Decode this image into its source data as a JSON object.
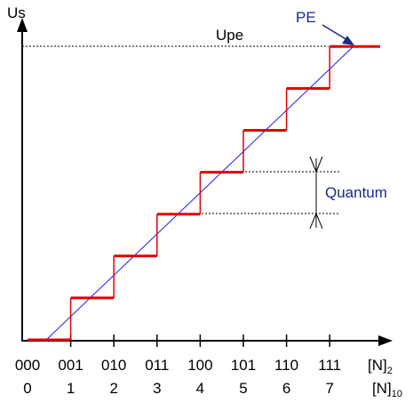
{
  "axis": {
    "y_label": "Us",
    "x_suffix_binary": "[N]",
    "x_suffix_binary_sub": "2",
    "x_suffix_decimal": "[N]",
    "x_suffix_decimal_sub": "10"
  },
  "labels": {
    "full_scale": "Upe",
    "pe": "PE",
    "quantum": "Quantum"
  },
  "ticks": {
    "binary": [
      "000",
      "001",
      "010",
      "011",
      "100",
      "101",
      "110",
      "111"
    ],
    "decimal": [
      "0",
      "1",
      "2",
      "3",
      "4",
      "5",
      "6",
      "7"
    ]
  },
  "colors": {
    "staircase": "#e00000",
    "ideal_line": "#1a1aff",
    "annotation": "#1a2a8c",
    "axis": "#000000"
  },
  "chart_data": {
    "type": "line",
    "x": [
      0,
      1,
      2,
      3,
      4,
      5,
      6,
      7
    ],
    "series": [
      {
        "values": [
          0,
          1,
          2,
          3,
          4,
          5,
          6,
          7
        ]
      }
    ],
    "ideal_transfer": "linear",
    "ylabel": "Us",
    "xlabel_binary": "[N]2",
    "xlabel_decimal": "[N]10"
  }
}
